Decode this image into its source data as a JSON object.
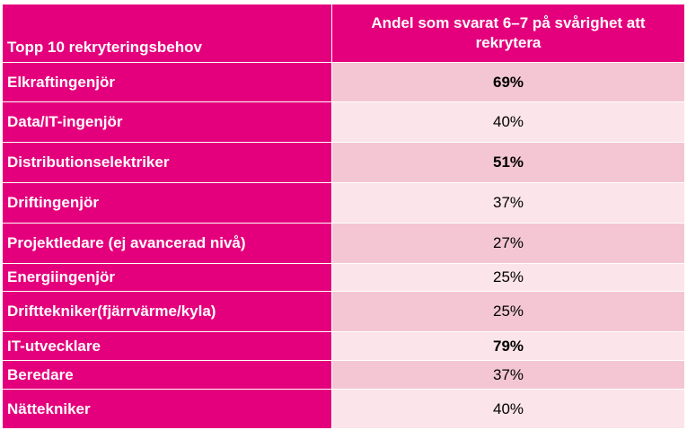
{
  "table": {
    "header": {
      "col1": "Topp 10 rekryteringsbehov",
      "col2": "Andel som svarat 6–7 på svårighet att rekrytera"
    },
    "rows": [
      {
        "label": "Elkraftingenjör",
        "value": "69%",
        "bold": true
      },
      {
        "label": "Data/IT-ingenjör",
        "value": "40%",
        "bold": false
      },
      {
        "label": "Distributionselektriker",
        "value": "51%",
        "bold": true
      },
      {
        "label": "Driftingenjör",
        "value": "37%",
        "bold": false
      },
      {
        "label": "Projektledare (ej avancerad nivå)",
        "value": "27%",
        "bold": false
      },
      {
        "label": "Energiingenjör",
        "value": "25%",
        "bold": false
      },
      {
        "label": "Drifttekniker(fjärrvärme/kyla)",
        "value": "25%",
        "bold": false
      },
      {
        "label": "IT-utvecklare",
        "value": "79%",
        "bold": true
      },
      {
        "label": "Beredare",
        "value": "37%",
        "bold": false
      },
      {
        "label": "Nättekniker",
        "value": "40%",
        "bold": false
      }
    ],
    "colors": {
      "header_bg": "#e4007c",
      "row_odd_bg": "#f4c6d4",
      "row_even_bg": "#fbe4ea"
    }
  }
}
